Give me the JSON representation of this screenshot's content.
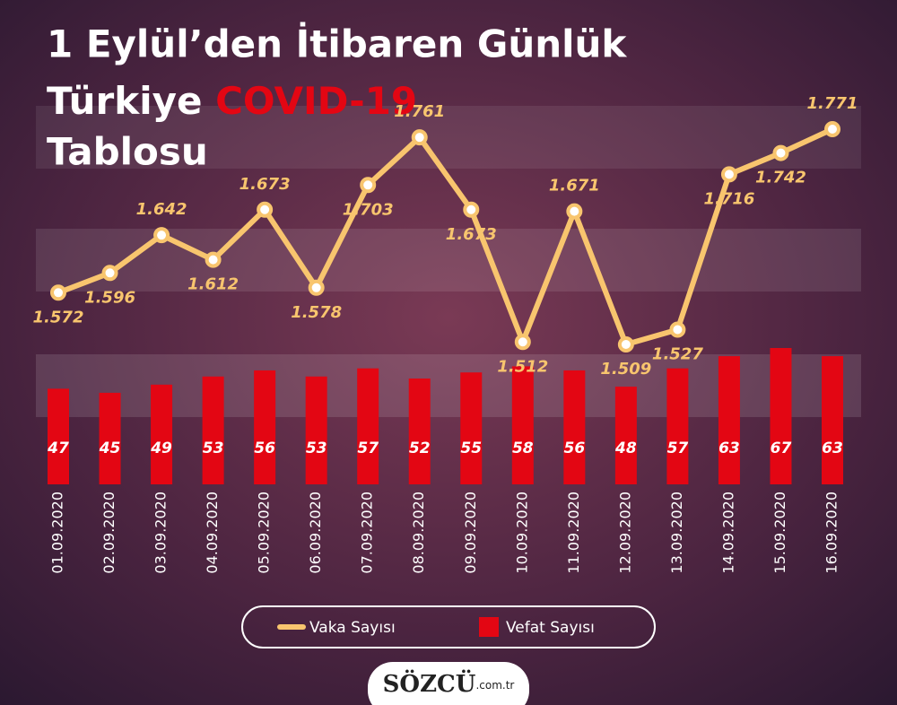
{
  "chart_data": {
    "type": "combo",
    "title": [
      "1 Eylül’den İtibaren Günlük",
      "Türkiye",
      "COVID-19",
      "Tablosu"
    ],
    "categories": [
      "01.09.2020",
      "02.09.2020",
      "03.09.2020",
      "04.09.2020",
      "05.09.2020",
      "06.09.2020",
      "07.09.2020",
      "08.09.2020",
      "09.09.2020",
      "10.09.2020",
      "11.09.2020",
      "12.09.2020",
      "13.09.2020",
      "14.09.2020",
      "15.09.2020",
      "16.09.2020"
    ],
    "series": [
      {
        "name": "Vaka Sayısı",
        "type": "line",
        "color": "#f8c56e",
        "values": [
          1572,
          1596,
          1642,
          1612,
          1673,
          1578,
          1703,
          1761,
          1673,
          1512,
          1671,
          1509,
          1527,
          1716,
          1742,
          1771
        ],
        "value_labels": [
          "1.572",
          "1.596",
          "1.642",
          "1.612",
          "1.673",
          "1.578",
          "1.703",
          "1.761",
          "1.673",
          "1.512",
          "1.671",
          "1.509",
          "1.527",
          "1.716",
          "1.742",
          "1.771"
        ]
      },
      {
        "name": "Vefat Sayısı",
        "type": "bar",
        "color": "#e30613",
        "values": [
          47,
          45,
          49,
          53,
          56,
          53,
          57,
          52,
          55,
          58,
          56,
          48,
          57,
          63,
          67,
          63
        ]
      }
    ],
    "logo": "SÖZCÜ",
    "logo_domain": ".com.tr"
  }
}
